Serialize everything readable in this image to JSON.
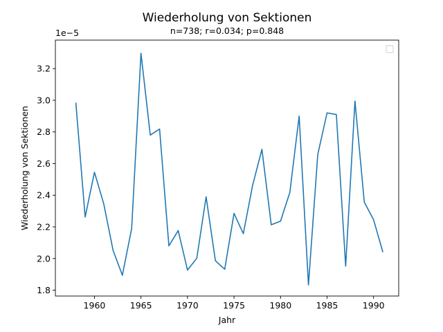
{
  "chart_data": {
    "type": "line",
    "title": "Wiederholung von Sektionen",
    "subtitle": "n=738; r=0.034; p=0.848",
    "xlabel": "Jahr",
    "ylabel": "Wiederholung von Sektionen",
    "y_offset_label": "1e−5",
    "xlim": [
      1955.8,
      1992.7
    ],
    "ylim": [
      1.763,
      3.38
    ],
    "x_ticks": [
      1960,
      1965,
      1970,
      1975,
      1980,
      1985,
      1990
    ],
    "x_tick_labels": [
      "1960",
      "1965",
      "1970",
      "1975",
      "1980",
      "1985",
      "1990"
    ],
    "y_ticks": [
      1.8,
      2.0,
      2.2,
      2.4,
      2.6,
      2.8,
      3.0,
      3.2
    ],
    "y_tick_labels": [
      "1.8",
      "2.0",
      "2.2",
      "2.4",
      "2.6",
      "2.8",
      "3.0",
      "3.2"
    ],
    "grid": false,
    "legend": "top-right, empty",
    "line_color": "#1f77b4",
    "series": [
      {
        "x": [
          1958,
          1959,
          1960,
          1961,
          1962,
          1963,
          1964,
          1965,
          1966,
          1967,
          1968,
          1969,
          1970,
          1971,
          1972,
          1973,
          1974,
          1975,
          1976,
          1977,
          1978,
          1979,
          1980,
          1981,
          1982,
          1983,
          1984,
          1985,
          1986,
          1987,
          1988,
          1989,
          1990,
          1991
        ],
        "values": [
          2.985,
          2.262,
          2.545,
          2.345,
          2.052,
          1.894,
          2.19,
          3.297,
          2.78,
          2.818,
          2.08,
          2.177,
          1.927,
          2.002,
          2.39,
          1.986,
          1.932,
          2.285,
          2.157,
          2.463,
          2.69,
          2.213,
          2.236,
          2.418,
          2.9,
          1.833,
          2.657,
          2.92,
          2.91,
          1.952,
          2.995,
          2.357,
          2.245,
          2.04
        ]
      }
    ]
  }
}
